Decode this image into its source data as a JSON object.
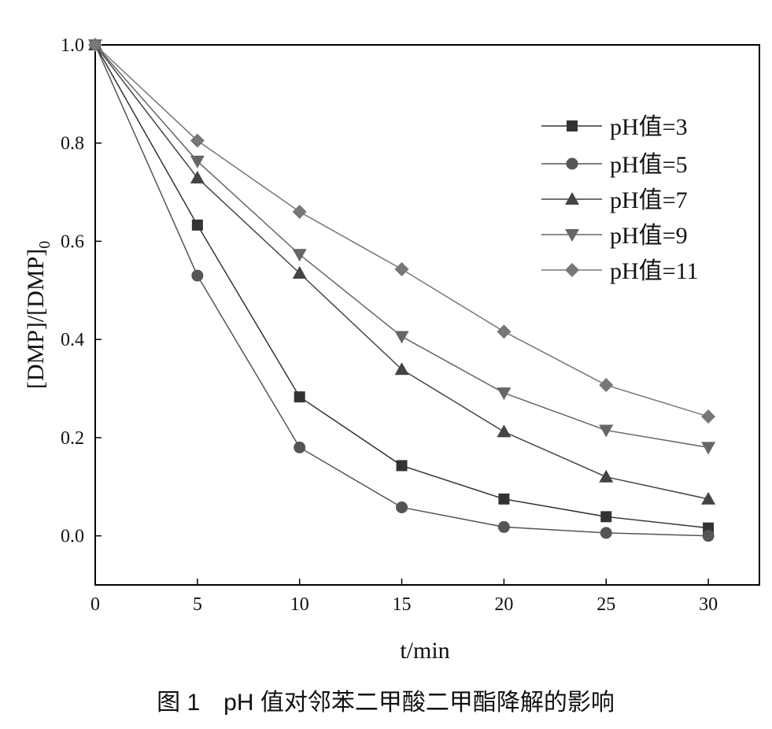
{
  "chart_data": {
    "type": "line",
    "title": "",
    "xlabel": "t/min",
    "ylabel": "[DMP]/[DMP]",
    "ylabel_subscript": "0",
    "xlim": [
      0,
      32.5
    ],
    "ylim": [
      -0.1,
      1.0
    ],
    "xticks": [
      "0",
      "5",
      "10",
      "15",
      "20",
      "25",
      "30"
    ],
    "yticks": [
      "0.0",
      "0.2",
      "0.4",
      "0.6",
      "0.8",
      "1.0"
    ],
    "grid": false,
    "legend_position": "top-right",
    "x": [
      0,
      5,
      10,
      15,
      20,
      25,
      30
    ],
    "series": [
      {
        "name": "pH值=3",
        "marker": "square",
        "color": "#333333",
        "values": [
          1.0,
          0.633,
          0.283,
          0.143,
          0.075,
          0.039,
          0.016
        ]
      },
      {
        "name": "pH值=5",
        "marker": "circle",
        "color": "#555555",
        "values": [
          1.0,
          0.53,
          0.18,
          0.058,
          0.018,
          0.006,
          0.0
        ]
      },
      {
        "name": "pH值=7",
        "marker": "triangle-up",
        "color": "#444444",
        "values": [
          1.0,
          0.729,
          0.535,
          0.339,
          0.212,
          0.12,
          0.075
        ]
      },
      {
        "name": "pH值=9",
        "marker": "triangle-down",
        "color": "#666666",
        "values": [
          1.0,
          0.763,
          0.573,
          0.406,
          0.291,
          0.215,
          0.18
        ]
      },
      {
        "name": "pH值=11",
        "marker": "diamond",
        "color": "#777777",
        "values": [
          1.0,
          0.805,
          0.66,
          0.543,
          0.416,
          0.307,
          0.243
        ]
      }
    ]
  },
  "caption": "图 1　pH 值对邻苯二甲酸二甲酯降解的影响"
}
